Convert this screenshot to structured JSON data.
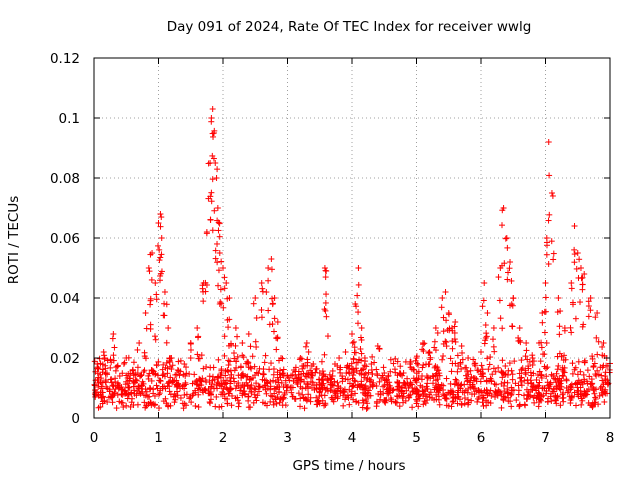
{
  "chart_data": {
    "type": "scatter",
    "title": "Day 091 of 2024, Rate Of TEC Index for receiver wwlg",
    "xlabel": "GPS time / hours",
    "ylabel": "ROTI / TECUs",
    "xlim": [
      0,
      8
    ],
    "ylim": [
      0,
      0.12
    ],
    "x_ticks": [
      "0",
      "1",
      "2",
      "3",
      "4",
      "5",
      "6",
      "7",
      "8"
    ],
    "y_ticks": [
      "0",
      "0.02",
      "0.04",
      "0.06",
      "0.08",
      "0.1",
      "0.12"
    ],
    "grid": true,
    "marker": "+",
    "color": "#ff0000",
    "series": [
      {
        "name": "ROTI",
        "x": [
          0.05,
          0.1,
          0.15,
          0.2,
          0.3,
          0.4,
          0.5,
          0.6,
          0.7,
          0.8,
          0.85,
          0.9,
          0.95,
          1.0,
          1.03,
          1.05,
          1.1,
          1.15,
          1.2,
          1.3,
          1.4,
          1.5,
          1.6,
          1.7,
          1.75,
          1.8,
          1.82,
          1.84,
          1.86,
          1.88,
          1.9,
          1.92,
          1.95,
          2.0,
          2.05,
          2.1,
          2.2,
          2.3,
          2.4,
          2.5,
          2.6,
          2.7,
          2.75,
          2.8,
          2.85,
          2.9,
          3.0,
          3.1,
          3.2,
          3.3,
          3.4,
          3.5,
          3.58,
          3.6,
          3.7,
          3.8,
          3.9,
          4.0,
          4.05,
          4.1,
          4.15,
          4.2,
          4.3,
          4.4,
          4.5,
          4.6,
          4.7,
          4.8,
          4.9,
          5.0,
          5.1,
          5.2,
          5.3,
          5.4,
          5.45,
          5.5,
          5.55,
          5.6,
          5.7,
          5.8,
          5.9,
          6.0,
          6.05,
          6.1,
          6.2,
          6.3,
          6.35,
          6.4,
          6.45,
          6.5,
          6.6,
          6.7,
          6.8,
          6.9,
          6.95,
          7.0,
          7.02,
          7.05,
          7.1,
          7.2,
          7.3,
          7.4,
          7.45,
          7.5,
          7.55,
          7.6,
          7.7,
          7.8,
          7.9,
          7.95
        ],
        "y": [
          0.018,
          0.012,
          0.022,
          0.015,
          0.028,
          0.014,
          0.02,
          0.016,
          0.025,
          0.035,
          0.05,
          0.055,
          0.045,
          0.065,
          0.068,
          0.06,
          0.042,
          0.03,
          0.02,
          0.016,
          0.018,
          0.025,
          0.03,
          0.045,
          0.062,
          0.085,
          0.1,
          0.103,
          0.095,
          0.085,
          0.08,
          0.07,
          0.055,
          0.05,
          0.045,
          0.04,
          0.03,
          0.025,
          0.028,
          0.04,
          0.045,
          0.05,
          0.053,
          0.04,
          0.032,
          0.02,
          0.014,
          0.016,
          0.02,
          0.025,
          0.018,
          0.015,
          0.05,
          0.049,
          0.014,
          0.02,
          0.022,
          0.028,
          0.038,
          0.05,
          0.03,
          0.02,
          0.018,
          0.024,
          0.015,
          0.01,
          0.012,
          0.015,
          0.018,
          0.02,
          0.025,
          0.022,
          0.03,
          0.04,
          0.042,
          0.035,
          0.03,
          0.032,
          0.024,
          0.02,
          0.018,
          0.022,
          0.045,
          0.035,
          0.03,
          0.05,
          0.07,
          0.06,
          0.052,
          0.04,
          0.03,
          0.025,
          0.02,
          0.025,
          0.035,
          0.045,
          0.06,
          0.092,
          0.075,
          0.04,
          0.03,
          0.045,
          0.064,
          0.055,
          0.05,
          0.048,
          0.04,
          0.035,
          0.025,
          0.02
        ],
        "baseline_band": [
          0.003,
          0.022
        ]
      }
    ]
  }
}
